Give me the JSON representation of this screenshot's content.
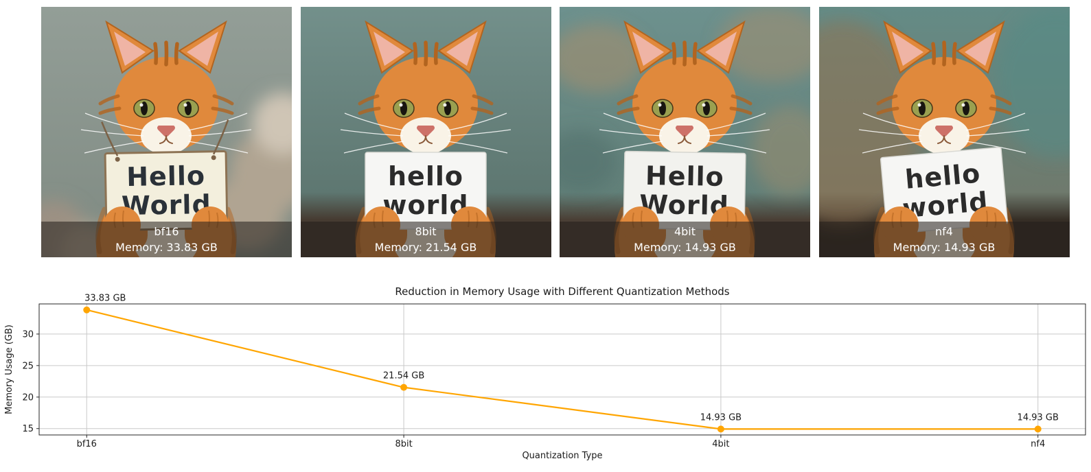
{
  "page": {
    "background": "#ffffff"
  },
  "overlay": {
    "background": "rgba(35,30,25,0.55)",
    "text_color": "#ffffff"
  },
  "cat_colors": {
    "fur": "#e0893c",
    "fur_dark": "#b2641f",
    "chest": "#f7ecd8",
    "muzzle": "#f9f3e7",
    "inner_ear": "#efb4a5",
    "eye": "#9aa050",
    "nose": "#cd7168"
  },
  "panels": [
    {
      "name": "bf16",
      "memory_label": "Memory: 33.83 GB",
      "sign": {
        "line1": "Hello",
        "line2": "World"
      },
      "scene": {
        "bg_top": "#939e97",
        "bg_bottom": "#7f8a82",
        "floor": null,
        "accent": "#b0a492",
        "accent_layout": "plant",
        "sign_fill": "#f3efdd",
        "sign_edge": "#8d7354",
        "sign_rotate": -1,
        "string_color": "#7c6247",
        "text_color": "#2a3138"
      }
    },
    {
      "name": "8bit",
      "memory_label": "Memory: 21.54 GB",
      "sign": {
        "line1": "hello",
        "line2": "world"
      },
      "scene": {
        "bg_top": "#73908b",
        "bg_bottom": "#5e7771",
        "floor": "#463b31",
        "accent": null,
        "accent_layout": "plain",
        "sign_fill": "#f6f6f4",
        "sign_edge": "#d9d9d4",
        "sign_rotate": 0,
        "string_color": null,
        "text_color": "#2b2b2b"
      }
    },
    {
      "name": "4bit",
      "memory_label": "Memory: 14.93 GB",
      "sign": {
        "line1": "Hello",
        "line2": "World"
      },
      "scene": {
        "bg_top": "#6d918e",
        "bg_bottom": "#628079",
        "floor": "#4a3f35",
        "accent": "#a78e6b",
        "accent_layout": "mottle",
        "sign_fill": "#f2f2ee",
        "sign_edge": "#d6d6d0",
        "sign_rotate": 1,
        "string_color": null,
        "text_color": "#2b2b2b"
      }
    },
    {
      "name": "nf4",
      "memory_label": "Memory: 14.93 GB",
      "sign": {
        "line1": "hello",
        "line2": "world"
      },
      "scene": {
        "bg_top": "#648b86",
        "bg_bottom": "#6f7a6d",
        "floor": "#362e26",
        "accent": "#8f7354",
        "accent_layout": "wash",
        "sign_fill": "#f6f6f4",
        "sign_edge": "#d9d9d4",
        "sign_rotate": -5,
        "string_color": null,
        "text_color": "#2b2b2b"
      }
    }
  ],
  "chart_data": {
    "type": "line",
    "title": "Reduction in Memory Usage with Different Quantization Methods",
    "xlabel": "Quantization Type",
    "ylabel": "Memory Usage (GB)",
    "categories": [
      "bf16",
      "8bit",
      "4bit",
      "nf4"
    ],
    "values": [
      33.83,
      21.54,
      14.93,
      14.93
    ],
    "point_labels": [
      "33.83 GB",
      "21.54 GB",
      "14.93 GB",
      "14.93 GB"
    ],
    "yticks": [
      15,
      20,
      25,
      30
    ],
    "ylim": [
      13.99,
      34.78
    ],
    "line_color": "#ffa500",
    "marker": "circle",
    "grid": true,
    "legend": null
  }
}
